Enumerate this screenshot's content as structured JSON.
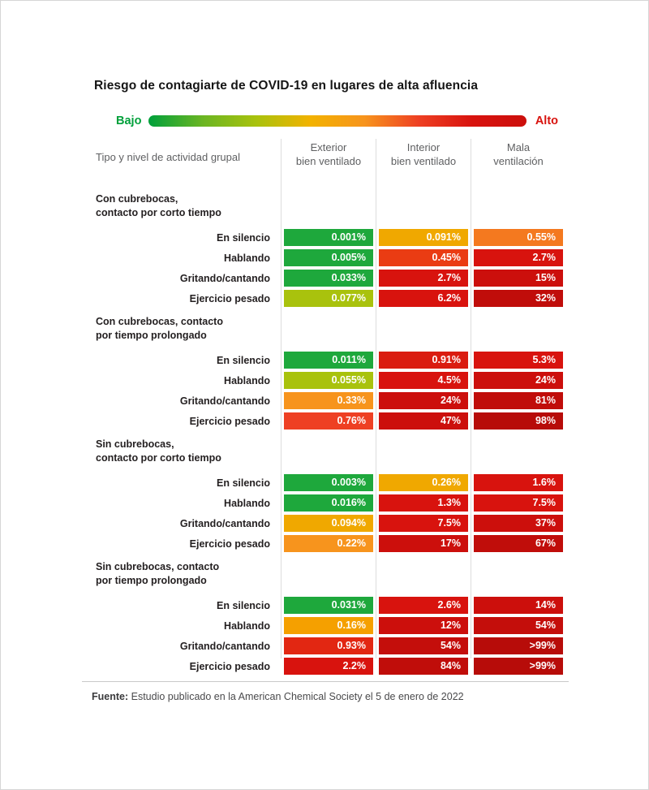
{
  "page": {
    "title": "Riesgo de contagiarte de COVID-19 en lugares de alta afluencia",
    "footer": {
      "label": "Fuente:",
      "text": " Estudio publicado en la American Chemical Society el 5 de enero de 2022"
    }
  },
  "chart_data": {
    "type": "heatmap",
    "title": "Riesgo de contagiarte de COVID-19 en lugares de alta afluencia",
    "row_axis_label": "Tipo y nivel de actividad grupal",
    "legend": {
      "low_label": "Bajo",
      "high_label": "Alto",
      "low_color": "#00a03b",
      "high_color": "#d8130e",
      "gradient_stops": [
        "#00a03b",
        "#6ab523",
        "#a9c20d",
        "#f2b200",
        "#f7941d",
        "#ee4023",
        "#d8130e",
        "#cc0f0c"
      ]
    },
    "columns": [
      {
        "line1": "Exterior",
        "line2": "bien ventilado"
      },
      {
        "line1": "Interior",
        "line2": "bien ventilado"
      },
      {
        "line1": "Mala",
        "line2": "ventilación"
      }
    ],
    "groups": [
      {
        "title_lines": [
          "Con cubrebocas,",
          "contacto por corto tiempo"
        ],
        "rows": [
          {
            "activity": "En silencio",
            "values": [
              "0.001%",
              "0.091%",
              "0.55%"
            ],
            "colors": [
              "#1ea83c",
              "#f0a800",
              "#f4791f"
            ]
          },
          {
            "activity": "Hablando",
            "values": [
              "0.005%",
              "0.45%",
              "2.7%"
            ],
            "colors": [
              "#1ea83c",
              "#ea3c13",
              "#d8130e"
            ]
          },
          {
            "activity": "Gritando/cantando",
            "values": [
              "0.033%",
              "2.7%",
              "15%"
            ],
            "colors": [
              "#1ea83c",
              "#d8130e",
              "#cc0f0c"
            ]
          },
          {
            "activity": "Ejercicio pesado",
            "values": [
              "0.077%",
              "6.2%",
              "32%"
            ],
            "colors": [
              "#a9c20d",
              "#d8130e",
              "#c00d0a"
            ]
          }
        ]
      },
      {
        "title_lines": [
          "Con cubrebocas, contacto",
          "por tiempo prolongado"
        ],
        "rows": [
          {
            "activity": "En silencio",
            "values": [
              "0.011%",
              "0.91%",
              "5.3%"
            ],
            "colors": [
              "#1ea83c",
              "#da1c10",
              "#d8130e"
            ]
          },
          {
            "activity": "Hablando",
            "values": [
              "0.055%",
              "4.5%",
              "24%"
            ],
            "colors": [
              "#a9c20d",
              "#d8130e",
              "#cc0f0c"
            ]
          },
          {
            "activity": "Gritando/cantando",
            "values": [
              "0.33%",
              "24%",
              "81%"
            ],
            "colors": [
              "#f7941d",
              "#cc0f0c",
              "#c00d0a"
            ]
          },
          {
            "activity": "Ejercicio pesado",
            "values": [
              "0.76%",
              "47%",
              "98%"
            ],
            "colors": [
              "#ee4023",
              "#cc0f0c",
              "#b70c09"
            ]
          }
        ]
      },
      {
        "title_lines": [
          "Sin cubrebocas,",
          "contacto por corto tiempo"
        ],
        "rows": [
          {
            "activity": "En silencio",
            "values": [
              "0.003%",
              "0.26%",
              "1.6%"
            ],
            "colors": [
              "#1ea83c",
              "#f0a800",
              "#d8130e"
            ]
          },
          {
            "activity": "Hablando",
            "values": [
              "0.016%",
              "1.3%",
              "7.5%"
            ],
            "colors": [
              "#1ea83c",
              "#d8130e",
              "#d8130e"
            ]
          },
          {
            "activity": "Gritando/cantando",
            "values": [
              "0.094%",
              "7.5%",
              "37%"
            ],
            "colors": [
              "#f0a800",
              "#d8130e",
              "#cc0f0c"
            ]
          },
          {
            "activity": "Ejercicio pesado",
            "values": [
              "0.22%",
              "17%",
              "67%"
            ],
            "colors": [
              "#f7941d",
              "#cc0f0c",
              "#c00d0a"
            ]
          }
        ]
      },
      {
        "title_lines": [
          "Sin cubrebocas, contacto",
          "por tiempo prolongado"
        ],
        "rows": [
          {
            "activity": "En silencio",
            "values": [
              "0.031%",
              "2.6%",
              "14%"
            ],
            "colors": [
              "#1ea83c",
              "#d8130e",
              "#cc0f0c"
            ]
          },
          {
            "activity": "Hablando",
            "values": [
              "0.16%",
              "12%",
              "54%"
            ],
            "colors": [
              "#f5a000",
              "#cc0f0c",
              "#c40e0b"
            ]
          },
          {
            "activity": "Gritando/cantando",
            "values": [
              "0.93%",
              "54%",
              ">99%"
            ],
            "colors": [
              "#e22712",
              "#c40e0b",
              "#b70c09"
            ]
          },
          {
            "activity": "Ejercicio pesado",
            "values": [
              "2.2%",
              "84%",
              ">99%"
            ],
            "colors": [
              "#d8130e",
              "#c00d0a",
              "#b70c09"
            ]
          }
        ]
      }
    ]
  }
}
